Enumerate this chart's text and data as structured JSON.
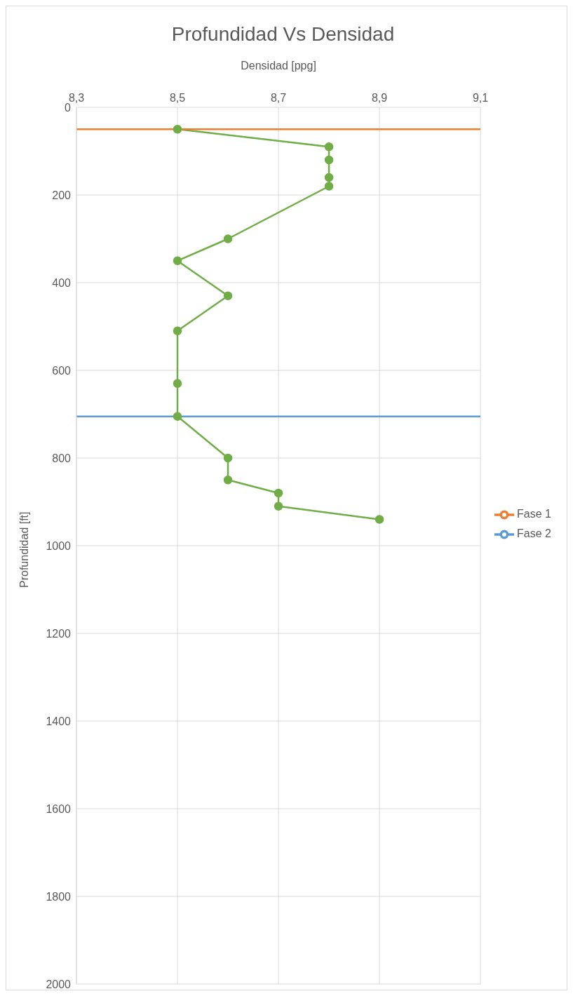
{
  "chart_data": {
    "type": "line",
    "title": "Profundidad Vs Densidad",
    "xlabel": "Densidad [ppg]",
    "ylabel": "Profundidad [ft]",
    "xlim": [
      8.3,
      9.1
    ],
    "xticks": [
      {
        "value": 8.3,
        "label": "8,3"
      },
      {
        "value": 8.5,
        "label": "8,5"
      },
      {
        "value": 8.7,
        "label": "8,7"
      },
      {
        "value": 8.9,
        "label": "8,9"
      },
      {
        "value": 9.1,
        "label": "9,1"
      }
    ],
    "ylim": [
      2000,
      0
    ],
    "yticks": [
      0,
      200,
      400,
      600,
      800,
      1000,
      1200,
      1400,
      1600,
      1800,
      2000
    ],
    "grid": true,
    "legend": "right",
    "marker": "circle",
    "series": [
      {
        "color": "#70ad47",
        "x": [
          8.5,
          8.8,
          8.8,
          8.8,
          8.8,
          8.6,
          8.5,
          8.6,
          8.5,
          8.5,
          8.5,
          8.6,
          8.6,
          8.7,
          8.7,
          8.9
        ],
        "values": [
          50,
          90,
          120,
          160,
          180,
          300,
          350,
          430,
          510,
          630,
          705,
          800,
          850,
          880,
          910,
          940
        ]
      },
      {
        "name": "Fase 1",
        "color": "#ed7d31",
        "marker": "none",
        "x": [
          8.3,
          9.1
        ],
        "values": [
          50,
          50
        ]
      },
      {
        "name": "Fase 2",
        "color": "#5b9bd5",
        "marker": "none",
        "x": [
          8.3,
          9.1
        ],
        "values": [
          705,
          705
        ]
      }
    ]
  }
}
